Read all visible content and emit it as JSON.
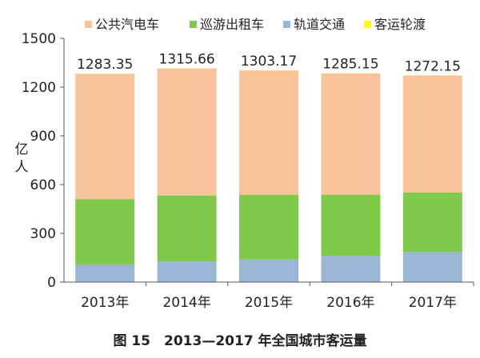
{
  "chart_data": {
    "type": "bar",
    "stacked": true,
    "categories": [
      "2013年",
      "2014年",
      "2015年",
      "2016年",
      "2017年"
    ],
    "series": [
      {
        "name": "轨道交通",
        "color": "#9ab5d6",
        "values": [
          109,
          127,
          140,
          161,
          185
        ]
      },
      {
        "name": "巡游出租车",
        "color": "#7ec84a",
        "values": [
          402,
          406,
          397,
          377,
          366
        ]
      },
      {
        "name": "公共汽电车",
        "color": "#f8c39b",
        "values": [
          771.35,
          781.66,
          765.17,
          746.15,
          720.15
        ]
      },
      {
        "name": "客运轮渡",
        "color": "#ffff00",
        "values": [
          1,
          1,
          1,
          1,
          1
        ]
      }
    ],
    "totals": [
      "1283.35",
      "1315.66",
      "1303.17",
      "1285.15",
      "1272.15"
    ],
    "ylim": [
      0,
      1500
    ],
    "yticks": [
      0,
      300,
      600,
      900,
      1200,
      1500
    ],
    "ylabel": "亿人",
    "legend_order": [
      "公共汽电车",
      "巡游出租车",
      "轨道交通",
      "客运轮渡"
    ],
    "legend_position": "top",
    "grid": false,
    "caption": "图 15　2013—2017 年全国城市客运量"
  }
}
